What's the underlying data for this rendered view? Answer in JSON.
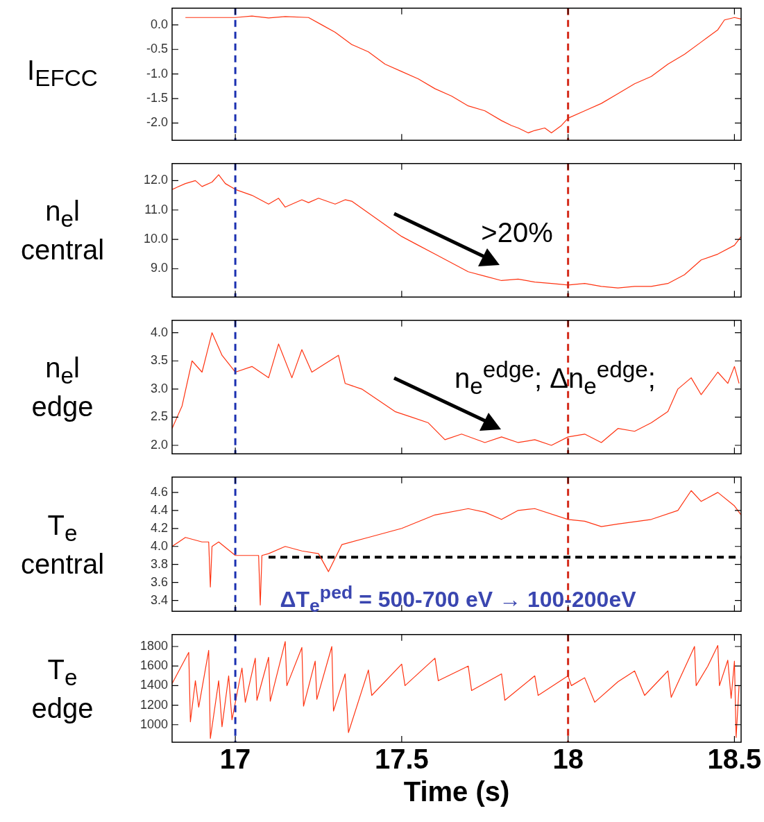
{
  "chart_data": [
    {
      "type": "line",
      "ylabel": "I$_{EFCC}$",
      "xlim": [
        16.81,
        18.52
      ],
      "xticks": [
        17,
        17.5,
        18,
        18.5
      ],
      "ylim": [
        -2.35,
        0.34
      ],
      "yticks": [
        {
          "value": 0,
          "label": "0.0"
        },
        {
          "value": -0.5,
          "label": "-0.5"
        },
        {
          "value": -1,
          "label": "-1.0"
        },
        {
          "value": -1.5,
          "label": "-1.5"
        },
        {
          "value": -2,
          "label": "-2.0"
        }
      ],
      "tick_labels": "y",
      "series": [
        {
          "color": "#ff3311",
          "x": [
            16.85,
            17.0,
            17.05,
            17.1,
            17.15,
            17.22,
            17.26,
            17.3,
            17.35,
            17.4,
            17.45,
            17.5,
            17.55,
            17.6,
            17.65,
            17.7,
            17.75,
            17.8,
            17.83,
            17.85,
            17.88,
            17.9,
            17.93,
            17.95,
            17.98,
            18.0,
            18.05,
            18.1,
            18.15,
            18.2,
            18.25,
            18.3,
            18.35,
            18.4,
            18.45,
            18.47,
            18.5,
            18.52
          ],
          "values": [
            0.15,
            0.15,
            0.18,
            0.14,
            0.17,
            0.15,
            0.0,
            -0.15,
            -0.4,
            -0.55,
            -0.8,
            -0.95,
            -1.1,
            -1.3,
            -1.45,
            -1.65,
            -1.75,
            -1.95,
            -2.05,
            -2.1,
            -2.2,
            -2.15,
            -2.1,
            -2.2,
            -2.05,
            -1.9,
            -1.75,
            -1.6,
            -1.4,
            -1.2,
            -1.05,
            -0.8,
            -0.6,
            -0.35,
            -0.1,
            0.1,
            0.15,
            0.12
          ]
        }
      ],
      "ref_lines": [
        {
          "axis": "x",
          "value": 17,
          "color": "#1a2fb0",
          "line_style": "dashed"
        },
        {
          "axis": "x",
          "value": 18,
          "color": "#d42a1a",
          "line_style": "dashed"
        }
      ]
    },
    {
      "type": "line",
      "ylabel": "n$_{e}$l\ncentral",
      "xlim": [
        16.81,
        18.52
      ],
      "xticks": [
        17,
        17.5,
        18,
        18.5
      ],
      "ylim": [
        8.04,
        12.58
      ],
      "yticks": [
        {
          "value": 9,
          "label": "9.0"
        },
        {
          "value": 10,
          "label": "10.0"
        },
        {
          "value": 11,
          "label": "11.0"
        },
        {
          "value": 12,
          "label": "12.0"
        }
      ],
      "tick_labels": "y",
      "series": [
        {
          "color": "#ff3311",
          "x": [
            16.81,
            16.85,
            16.88,
            16.9,
            16.93,
            16.95,
            16.97,
            17.0,
            17.05,
            17.1,
            17.13,
            17.15,
            17.2,
            17.22,
            17.25,
            17.3,
            17.33,
            17.35,
            17.4,
            17.45,
            17.5,
            17.55,
            17.6,
            17.65,
            17.7,
            17.75,
            17.8,
            17.85,
            17.9,
            17.95,
            18.0,
            18.05,
            18.1,
            18.15,
            18.2,
            18.25,
            18.3,
            18.35,
            18.4,
            18.45,
            18.5,
            18.52
          ],
          "values": [
            11.7,
            11.9,
            12.0,
            11.8,
            11.95,
            12.2,
            11.9,
            11.7,
            11.5,
            11.2,
            11.4,
            11.1,
            11.35,
            11.25,
            11.4,
            11.2,
            11.35,
            11.3,
            10.9,
            10.5,
            10.1,
            9.8,
            9.5,
            9.2,
            8.9,
            8.75,
            8.6,
            8.65,
            8.55,
            8.5,
            8.45,
            8.5,
            8.4,
            8.35,
            8.4,
            8.4,
            8.5,
            8.8,
            9.3,
            9.5,
            9.8,
            10.1
          ]
        }
      ],
      "ref_lines": [
        {
          "axis": "x",
          "value": 17,
          "color": "#1a2fb0",
          "line_style": "dashed"
        },
        {
          "axis": "x",
          "value": 18,
          "color": "#d42a1a",
          "line_style": "dashed"
        }
      ],
      "annotations": [
        ">20%"
      ]
    },
    {
      "type": "line",
      "ylabel": "n$_{e}$l\nedge",
      "xlim": [
        16.81,
        18.52
      ],
      "xticks": [
        17,
        17.5,
        18,
        18.5
      ],
      "ylim": [
        1.85,
        4.22
      ],
      "yticks": [
        {
          "value": 2,
          "label": "2.0"
        },
        2.5,
        {
          "value": 3,
          "label": "3.0"
        },
        3.5,
        {
          "value": 4,
          "label": "4.0"
        }
      ],
      "tick_labels": "y",
      "series": [
        {
          "color": "#ff3311",
          "x": [
            16.81,
            16.84,
            16.87,
            16.9,
            16.93,
            16.96,
            17.0,
            17.05,
            17.1,
            17.13,
            17.17,
            17.2,
            17.23,
            17.27,
            17.31,
            17.33,
            17.38,
            17.43,
            17.48,
            17.53,
            17.58,
            17.63,
            17.68,
            17.75,
            17.8,
            17.85,
            17.9,
            17.95,
            18.0,
            18.05,
            18.1,
            18.15,
            18.2,
            18.25,
            18.3,
            18.33,
            18.37,
            18.4,
            18.45,
            18.48,
            18.5,
            18.514
          ],
          "values": [
            2.3,
            2.7,
            3.5,
            3.3,
            4.0,
            3.6,
            3.3,
            3.4,
            3.2,
            3.8,
            3.2,
            3.7,
            3.3,
            3.45,
            3.6,
            3.1,
            3.0,
            2.8,
            2.6,
            2.5,
            2.4,
            2.1,
            2.2,
            2.05,
            2.15,
            2.05,
            2.1,
            2.0,
            2.15,
            2.2,
            2.05,
            2.3,
            2.25,
            2.4,
            2.6,
            3.0,
            3.2,
            2.9,
            3.3,
            3.1,
            3.4,
            3.1
          ]
        }
      ],
      "ref_lines": [
        {
          "axis": "x",
          "value": 17,
          "color": "#1a2fb0",
          "line_style": "dashed"
        },
        {
          "axis": "x",
          "value": 18,
          "color": "#d42a1a",
          "line_style": "dashed"
        }
      ],
      "annotations": [
        "n$_{e}$$^{edge}$; Δn$_{e}$$^{edge}$;"
      ]
    },
    {
      "type": "line",
      "ylabel": "T$_{e}$\ncentral",
      "xlim": [
        16.81,
        18.52
      ],
      "xticks": [
        17,
        17.5,
        18,
        18.5
      ],
      "ylim": [
        3.28,
        4.77
      ],
      "yticks": [
        3.4,
        3.6,
        3.8,
        {
          "value": 4,
          "label": "4.0"
        },
        4.2,
        4.4,
        4.6
      ],
      "tick_labels": "y",
      "series": [
        {
          "color": "#ff3311",
          "x": [
            16.81,
            16.85,
            16.9,
            16.92,
            16.925,
            16.93,
            16.95,
            17.0,
            17.05,
            17.07,
            17.075,
            17.08,
            17.1,
            17.15,
            17.2,
            17.25,
            17.28,
            17.32,
            17.4,
            17.5,
            17.6,
            17.7,
            17.75,
            17.8,
            17.85,
            17.9,
            18.0,
            18.05,
            18.1,
            18.15,
            18.25,
            18.33,
            18.37,
            18.4,
            18.45,
            18.5,
            18.52
          ],
          "values": [
            4.0,
            4.1,
            4.05,
            4.05,
            3.55,
            4.0,
            4.05,
            3.9,
            3.9,
            3.9,
            3.35,
            3.9,
            3.92,
            4.0,
            3.95,
            3.92,
            3.72,
            4.02,
            4.1,
            4.2,
            4.35,
            4.42,
            4.38,
            4.3,
            4.4,
            4.42,
            4.3,
            4.28,
            4.22,
            4.25,
            4.3,
            4.4,
            4.62,
            4.5,
            4.6,
            4.45,
            4.35
          ]
        },
        {
          "color": "#000000",
          "line_style": "dashed",
          "x": [
            17.1,
            18.52
          ],
          "values": [
            3.88,
            3.88
          ]
        }
      ],
      "ref_lines": [
        {
          "axis": "x",
          "value": 17,
          "color": "#1a2fb0",
          "line_style": "dashed"
        },
        {
          "axis": "x",
          "value": 18,
          "color": "#d42a1a",
          "line_style": "dashed"
        }
      ],
      "annotations": [
        "ΔT$_{e}$$^{ped}$ = 500-700 eV → 100-200eV"
      ]
    },
    {
      "type": "line",
      "ylabel": "T$_{e}$\nedge",
      "xlabel": "Time (s)",
      "xlim": [
        16.81,
        18.52
      ],
      "xticks": [
        17,
        17.5,
        18,
        18.5
      ],
      "ylim": [
        821,
        1922
      ],
      "yticks": [
        1000,
        1200,
        1400,
        1600,
        1800
      ],
      "series": [
        {
          "color": "#ff3311",
          "x": [
            16.81,
            16.86,
            16.865,
            16.88,
            16.89,
            16.92,
            16.925,
            16.95,
            16.96,
            16.98,
            16.99,
            17.02,
            17.03,
            17.06,
            17.065,
            17.1,
            17.105,
            17.15,
            17.155,
            17.2,
            17.205,
            17.24,
            17.245,
            17.29,
            17.295,
            17.33,
            17.34,
            17.4,
            17.41,
            17.5,
            17.51,
            17.6,
            17.61,
            17.7,
            17.71,
            17.8,
            17.81,
            17.9,
            17.91,
            18.0,
            18.01,
            18.05,
            18.08,
            18.15,
            18.2,
            18.23,
            18.3,
            18.31,
            18.38,
            18.385,
            18.42,
            18.45,
            18.455,
            18.48,
            18.49,
            18.5,
            18.505,
            18.514
          ],
          "values": [
            1420,
            1740,
            1030,
            1450,
            1180,
            1760,
            860,
            1450,
            980,
            1500,
            1050,
            1580,
            1230,
            1680,
            1250,
            1690,
            1240,
            1850,
            1400,
            1790,
            1190,
            1650,
            1260,
            1800,
            1140,
            1520,
            920,
            1560,
            1300,
            1620,
            1400,
            1680,
            1450,
            1600,
            1350,
            1520,
            1250,
            1500,
            1300,
            1500,
            1400,
            1480,
            1230,
            1440,
            1550,
            1300,
            1550,
            1280,
            1800,
            1400,
            1600,
            1810,
            1400,
            1660,
            1270,
            1650,
            870,
            1400
          ]
        }
      ],
      "ref_lines": [
        {
          "axis": "x",
          "value": 17,
          "color": "#1a2fb0",
          "line_style": "dashed"
        },
        {
          "axis": "x",
          "value": 18,
          "color": "#d42a1a",
          "line_style": "dashed"
        }
      ]
    }
  ]
}
